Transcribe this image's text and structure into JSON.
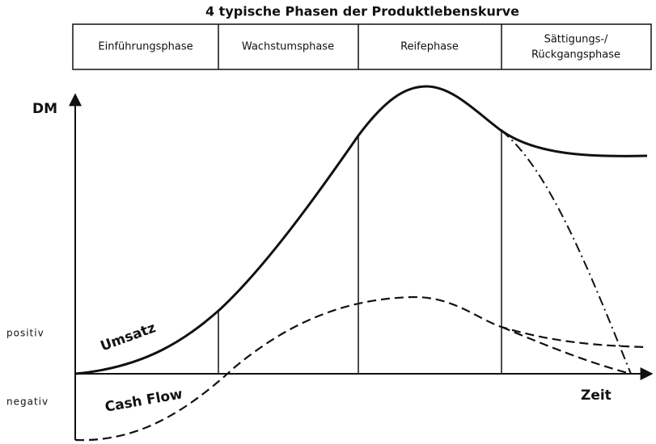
{
  "title": "4 typische Phasen der Produktlebenskurve",
  "phases": [
    [
      "Einführungsphase"
    ],
    [
      "Wachstumsphase"
    ],
    [
      "Reifephase"
    ],
    [
      "Sättigungs-/",
      "Rückgangsphase"
    ]
  ],
  "axis": {
    "y_label": "DM",
    "x_label": "Zeit",
    "positive": "positiv",
    "negative": "negativ"
  },
  "curves": {
    "sales": "Umsatz",
    "cash_flow": "Cash Flow"
  }
}
